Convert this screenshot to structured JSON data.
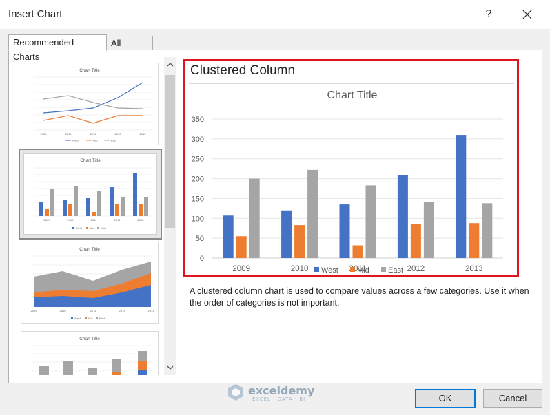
{
  "window": {
    "title": "Insert Chart",
    "help_label": "?"
  },
  "tabs": [
    {
      "label": "Recommended Charts"
    },
    {
      "label": "All Charts"
    }
  ],
  "preview": {
    "chart_type_name": "Clustered Column",
    "description": "A clustered column chart is used to compare values across a few categories. Use it when the order of categories is not important."
  },
  "thumbnails": [
    {
      "title": "Chart Title",
      "kind": "line"
    },
    {
      "title": "Chart Title",
      "kind": "clustered-column"
    },
    {
      "title": "Chart Title",
      "kind": "stacked-area"
    },
    {
      "title": "Chart Title",
      "kind": "stacked-column"
    }
  ],
  "buttons": {
    "ok": "OK",
    "cancel": "Cancel"
  },
  "watermark": {
    "name": "exceldemy",
    "tagline": "EXCEL · DATA · BI"
  },
  "chart_data": {
    "type": "bar",
    "title": "Chart Title",
    "categories": [
      "2009",
      "2010",
      "2011",
      "2012",
      "2013"
    ],
    "series": [
      {
        "name": "West",
        "color": "#4472c4",
        "values": [
          107,
          120,
          135,
          208,
          310
        ]
      },
      {
        "name": "Mid",
        "color": "#ed7d31",
        "values": [
          55,
          83,
          32,
          85,
          88
        ]
      },
      {
        "name": "East",
        "color": "#a5a5a5",
        "values": [
          200,
          222,
          183,
          142,
          138
        ]
      }
    ],
    "ylim": [
      0,
      350
    ],
    "yticks": [
      "0",
      "50",
      "100",
      "150",
      "200",
      "250",
      "300",
      "350"
    ],
    "grid": true,
    "legend": "bottom"
  }
}
